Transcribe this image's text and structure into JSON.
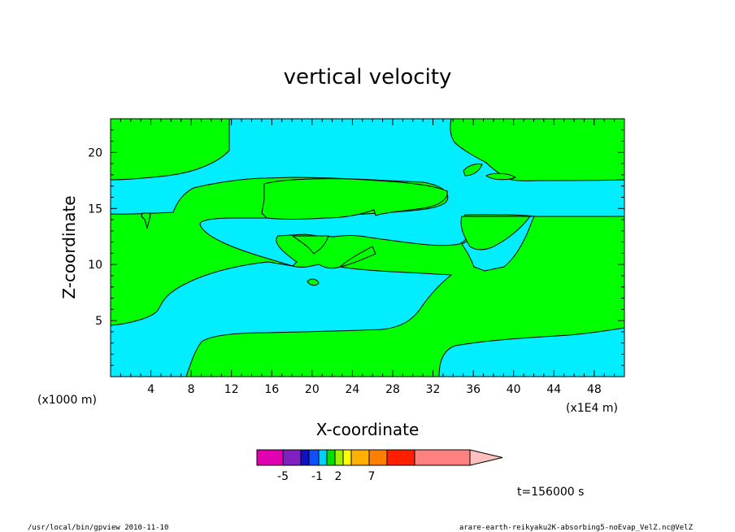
{
  "chart_data": {
    "type": "contour",
    "title": "vertical velocity",
    "xlabel": "X-coordinate",
    "ylabel": "Z-coordinate",
    "x_unit": "(x1E4 m)",
    "y_unit": "(x1000 m)",
    "xlim": [
      0,
      51
    ],
    "ylim": [
      0,
      23
    ],
    "x_ticks": [
      4,
      8,
      12,
      16,
      20,
      24,
      28,
      32,
      36,
      40,
      44,
      48
    ],
    "y_ticks": [
      5,
      10,
      15,
      20
    ],
    "time_label": "t=156000 s",
    "colorbar": {
      "colors": [
        "#e000b0",
        "#8020c0",
        "#1010c0",
        "#1050ff",
        "#00d0ff",
        "#00e000",
        "#a0f000",
        "#ffff00",
        "#ffb000",
        "#ff8000",
        "#ff2000",
        "#ff8080",
        "#ffc0c0"
      ],
      "labels": [
        "-5",
        "-1",
        "2",
        "7"
      ]
    },
    "fill_colors": {
      "positive": "#00ff00",
      "negative": "#00eeff"
    }
  },
  "footer": {
    "left": "/usr/local/bin/gpview  2010-11-10",
    "right": "arare-earth-reikyaku2K-absorbing5-noEvap_VelZ.nc@VelZ"
  }
}
